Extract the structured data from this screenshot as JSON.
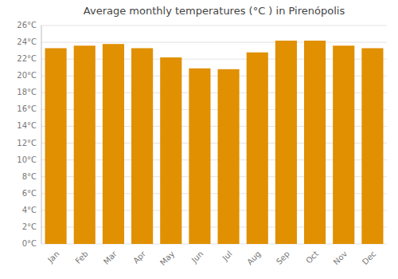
{
  "chart_data": {
    "type": "bar",
    "title": "Average monthly temperatures (°C ) in Pirenópolis",
    "categories": [
      "Jan",
      "Feb",
      "Mar",
      "Apr",
      "May",
      "Jun",
      "Jul",
      "Aug",
      "Sep",
      "Oct",
      "Nov",
      "Dec"
    ],
    "values": [
      23.3,
      23.6,
      23.8,
      23.3,
      22.2,
      20.9,
      20.8,
      22.8,
      24.2,
      24.2,
      23.6,
      23.3
    ],
    "color": "#E09000",
    "ylim": [
      0,
      26
    ],
    "yticks": [
      {
        "value": 0,
        "label": "0°C"
      },
      {
        "value": 2,
        "label": "2°C"
      },
      {
        "value": 4,
        "label": "4°C"
      },
      {
        "value": 6,
        "label": "6°C"
      },
      {
        "value": 8,
        "label": "8°C"
      },
      {
        "value": 10,
        "label": "10°C"
      },
      {
        "value": 12,
        "label": "12°C"
      },
      {
        "value": 14,
        "label": "14°C"
      },
      {
        "value": 16,
        "label": "16°C"
      },
      {
        "value": 18,
        "label": "18°C"
      },
      {
        "value": 20,
        "label": "20°C"
      },
      {
        "value": 22,
        "label": "22°C"
      },
      {
        "value": 24,
        "label": "24°C"
      },
      {
        "value": 26,
        "label": "26°C"
      }
    ],
    "grid": true
  }
}
